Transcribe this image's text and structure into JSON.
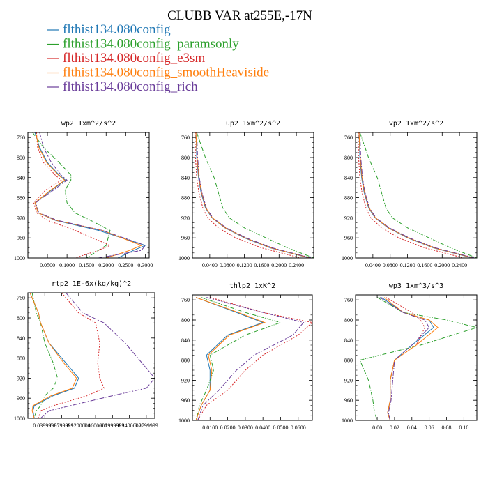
{
  "figure": {
    "title": "CLUBB VAR at255E,-17N"
  },
  "legend": [
    {
      "label": "flthist134.080config",
      "color": "#1f77b4"
    },
    {
      "label": "flthist134.080config_paramsonly",
      "color": "#2ca02c"
    },
    {
      "label": "flthist134.080config_e3sm",
      "color": "#d62728"
    },
    {
      "label": "flthist134.080config_smoothHeaviside",
      "color": "#ff7f0e"
    },
    {
      "label": "flthist134.080config_rich",
      "color": "#6a3d9a"
    }
  ],
  "chart_data": [
    {
      "type": "line",
      "title": "wp2  1xm^2/s^2",
      "xlim": [
        0,
        0.31
      ],
      "ylim": [
        750,
        1000
      ],
      "xticks": [
        0.05,
        0.1,
        0.15,
        0.2,
        0.25,
        0.3
      ],
      "xtick_labels": [
        "0.0500",
        "0.1000",
        "0.1500",
        "0.2000",
        "0.2500",
        "0.3000"
      ],
      "yticks": [
        760,
        800,
        840,
        880,
        920,
        960,
        1000
      ],
      "series": [
        {
          "name": "flthist134.080config",
          "x": [
            0.018,
            0.03,
            0.05,
            0.08,
            0.096,
            0.06,
            0.018,
            0.026,
            0.07,
            0.18,
            0.3,
            0.27,
            0.23
          ],
          "y": [
            750,
            780,
            810,
            835,
            845,
            865,
            890,
            910,
            925,
            945,
            975,
            985,
            1000
          ]
        },
        {
          "name": "flthist134.080config_paramsonly",
          "x": [
            0.012,
            0.04,
            0.08,
            0.11,
            0.11,
            0.095,
            0.1,
            0.12,
            0.16,
            0.21,
            0.2,
            0.18,
            0.15
          ],
          "y": [
            750,
            780,
            810,
            835,
            845,
            865,
            890,
            910,
            925,
            945,
            975,
            985,
            1000
          ]
        },
        {
          "name": "flthist134.080config_e3sm",
          "x": [
            0.022,
            0.025,
            0.04,
            0.07,
            0.085,
            0.045,
            0.015,
            0.022,
            0.05,
            0.12,
            0.21,
            0.18,
            0.12
          ],
          "y": [
            750,
            780,
            810,
            835,
            845,
            865,
            890,
            910,
            925,
            945,
            975,
            985,
            1000
          ]
        },
        {
          "name": "flthist134.080config_smoothHeaviside",
          "x": [
            0.02,
            0.028,
            0.048,
            0.078,
            0.094,
            0.058,
            0.018,
            0.026,
            0.072,
            0.19,
            0.29,
            0.26,
            0.2
          ],
          "y": [
            750,
            780,
            810,
            835,
            845,
            865,
            890,
            910,
            925,
            945,
            975,
            985,
            1000
          ]
        },
        {
          "name": "flthist134.080config_rich",
          "x": [
            0.03,
            0.04,
            0.06,
            0.085,
            0.1,
            0.065,
            0.02,
            0.028,
            0.075,
            0.19,
            0.3,
            0.29,
            0.18
          ],
          "y": [
            750,
            780,
            810,
            835,
            845,
            865,
            890,
            910,
            925,
            945,
            975,
            985,
            1000
          ]
        }
      ]
    },
    {
      "type": "line",
      "title": "up2  1xm^2/s^2",
      "xlim": [
        0,
        0.28
      ],
      "ylim": [
        750,
        1000
      ],
      "xticks": [
        0.04,
        0.08,
        0.12,
        0.16,
        0.2,
        0.24
      ],
      "xtick_labels": [
        "0.0400",
        "0.0800",
        "0.1200",
        "0.1600",
        "0.2000",
        "0.2400"
      ],
      "yticks": [
        760,
        800,
        840,
        880,
        920,
        960,
        1000
      ],
      "series": [
        {
          "name": "flthist134.080config",
          "x": [
            0.008,
            0.01,
            0.014,
            0.02,
            0.03,
            0.045,
            0.075,
            0.12,
            0.18,
            0.27
          ],
          "y": [
            750,
            800,
            840,
            870,
            900,
            920,
            940,
            960,
            980,
            1000
          ]
        },
        {
          "name": "flthist134.080config_paramsonly",
          "x": [
            0.01,
            0.03,
            0.05,
            0.06,
            0.07,
            0.085,
            0.12,
            0.17,
            0.22,
            0.28
          ],
          "y": [
            750,
            800,
            840,
            870,
            900,
            920,
            940,
            960,
            980,
            1000
          ]
        },
        {
          "name": "flthist134.080config_e3sm",
          "x": [
            0.006,
            0.007,
            0.01,
            0.015,
            0.024,
            0.035,
            0.06,
            0.1,
            0.16,
            0.25
          ],
          "y": [
            750,
            800,
            840,
            870,
            900,
            920,
            940,
            960,
            980,
            1000
          ]
        },
        {
          "name": "flthist134.080config_smoothHeaviside",
          "x": [
            0.008,
            0.011,
            0.015,
            0.021,
            0.031,
            0.046,
            0.076,
            0.122,
            0.182,
            0.272
          ],
          "y": [
            750,
            800,
            840,
            870,
            900,
            920,
            940,
            960,
            980,
            1000
          ]
        },
        {
          "name": "flthist134.080config_rich",
          "x": [
            0.01,
            0.012,
            0.016,
            0.022,
            0.032,
            0.047,
            0.078,
            0.124,
            0.185,
            0.275
          ],
          "y": [
            750,
            800,
            840,
            870,
            900,
            920,
            940,
            960,
            980,
            1000
          ]
        }
      ]
    },
    {
      "type": "line",
      "title": "vp2  1xm^2/s^2",
      "xlim": [
        0,
        0.28
      ],
      "ylim": [
        750,
        1000
      ],
      "xticks": [
        0.04,
        0.08,
        0.12,
        0.16,
        0.2,
        0.24
      ],
      "xtick_labels": [
        "0.0400",
        "0.0800",
        "0.1200",
        "0.1600",
        "0.2000",
        "0.2400"
      ],
      "yticks": [
        760,
        800,
        840,
        880,
        920,
        960,
        1000
      ],
      "series": [
        {
          "name": "flthist134.080config",
          "x": [
            0.008,
            0.01,
            0.014,
            0.02,
            0.03,
            0.045,
            0.075,
            0.12,
            0.18,
            0.27
          ],
          "y": [
            750,
            800,
            840,
            870,
            900,
            920,
            940,
            960,
            980,
            1000
          ]
        },
        {
          "name": "flthist134.080config_paramsonly",
          "x": [
            0.01,
            0.03,
            0.05,
            0.06,
            0.07,
            0.085,
            0.12,
            0.17,
            0.22,
            0.28
          ],
          "y": [
            750,
            800,
            840,
            870,
            900,
            920,
            940,
            960,
            980,
            1000
          ]
        },
        {
          "name": "flthist134.080config_e3sm",
          "x": [
            0.006,
            0.007,
            0.01,
            0.015,
            0.024,
            0.035,
            0.06,
            0.1,
            0.16,
            0.25
          ],
          "y": [
            750,
            800,
            840,
            870,
            900,
            920,
            940,
            960,
            980,
            1000
          ]
        },
        {
          "name": "flthist134.080config_smoothHeaviside",
          "x": [
            0.008,
            0.011,
            0.015,
            0.021,
            0.031,
            0.046,
            0.076,
            0.122,
            0.182,
            0.272
          ],
          "y": [
            750,
            800,
            840,
            870,
            900,
            920,
            940,
            960,
            980,
            1000
          ]
        },
        {
          "name": "flthist134.080config_rich",
          "x": [
            0.01,
            0.012,
            0.016,
            0.022,
            0.032,
            0.047,
            0.078,
            0.124,
            0.185,
            0.275
          ],
          "y": [
            750,
            800,
            840,
            870,
            900,
            920,
            940,
            960,
            980,
            1000
          ]
        }
      ]
    },
    {
      "type": "line",
      "title": "rtp2  1E-6x(kg/kg)^2",
      "xlim": [
        0,
        0.3
      ],
      "ylim": [
        750,
        1000
      ],
      "xticks": [
        0.04,
        0.08,
        0.12,
        0.16,
        0.2,
        0.24,
        0.28
      ],
      "xtick_labels": [
        "0.0399999",
        "0.0799999",
        "0.1200000",
        "0.1600000",
        "0.1999999",
        "0.2400000",
        "0.2799999"
      ],
      "yticks": [
        760,
        800,
        840,
        880,
        920,
        960,
        1000
      ],
      "series": [
        {
          "name": "flthist134.080config",
          "x": [
            0.005,
            0.025,
            0.03,
            0.05,
            0.09,
            0.12,
            0.11,
            0.06,
            0.015,
            0.012,
            0.015
          ],
          "y": [
            750,
            790,
            810,
            850,
            890,
            920,
            940,
            955,
            975,
            985,
            1000
          ]
        },
        {
          "name": "flthist134.080config_paramsonly",
          "x": [
            0.01,
            0.02,
            0.03,
            0.04,
            0.06,
            0.07,
            0.06,
            0.04,
            0.03,
            0.02,
            0.015
          ],
          "y": [
            750,
            790,
            810,
            850,
            890,
            920,
            940,
            955,
            975,
            985,
            1000
          ]
        },
        {
          "name": "flthist134.080config_e3sm",
          "x": [
            0.08,
            0.12,
            0.16,
            0.17,
            0.165,
            0.17,
            0.18,
            0.14,
            0.06,
            0.03,
            0.025
          ],
          "y": [
            750,
            790,
            810,
            850,
            890,
            920,
            940,
            955,
            975,
            985,
            1000
          ]
        },
        {
          "name": "flthist134.080config_smoothHeaviside",
          "x": [
            0.005,
            0.025,
            0.03,
            0.05,
            0.085,
            0.115,
            0.105,
            0.055,
            0.012,
            0.01,
            0.015
          ],
          "y": [
            750,
            790,
            810,
            850,
            890,
            920,
            940,
            955,
            975,
            985,
            1000
          ]
        },
        {
          "name": "flthist134.080config_rich",
          "x": [
            0.09,
            0.13,
            0.18,
            0.23,
            0.27,
            0.3,
            0.28,
            0.2,
            0.1,
            0.05,
            0.03
          ],
          "y": [
            750,
            790,
            810,
            850,
            890,
            920,
            940,
            955,
            975,
            985,
            1000
          ]
        }
      ]
    },
    {
      "type": "line",
      "title": "thlp2  1xK^2",
      "xlim": [
        0,
        0.068
      ],
      "ylim": [
        750,
        1000
      ],
      "xticks": [
        0.01,
        0.02,
        0.03,
        0.04,
        0.05,
        0.06
      ],
      "xtick_labels": [
        "0.0100",
        "0.0200",
        "0.0300",
        "0.0400",
        "0.0500",
        "0.0600"
      ],
      "yticks": [
        760,
        800,
        840,
        880,
        920,
        960,
        1000
      ],
      "series": [
        {
          "name": "flthist134.080config",
          "x": [
            0.002,
            0.025,
            0.04,
            0.02,
            0.008,
            0.01,
            0.01,
            0.005,
            0.002
          ],
          "y": [
            755,
            785,
            805,
            830,
            870,
            900,
            940,
            970,
            1000
          ]
        },
        {
          "name": "flthist134.080config_paramsonly",
          "x": [
            0.005,
            0.03,
            0.05,
            0.03,
            0.01,
            0.012,
            0.008,
            0.004,
            0.002
          ],
          "y": [
            755,
            785,
            805,
            830,
            870,
            900,
            940,
            970,
            1000
          ]
        },
        {
          "name": "flthist134.080config_e3sm",
          "x": [
            0.01,
            0.04,
            0.068,
            0.06,
            0.04,
            0.03,
            0.02,
            0.008,
            0.003
          ],
          "y": [
            755,
            785,
            805,
            830,
            870,
            900,
            940,
            970,
            1000
          ]
        },
        {
          "name": "flthist134.080config_smoothHeaviside",
          "x": [
            0.002,
            0.026,
            0.041,
            0.021,
            0.009,
            0.011,
            0.01,
            0.005,
            0.002
          ],
          "y": [
            755,
            785,
            805,
            830,
            870,
            900,
            940,
            970,
            1000
          ]
        },
        {
          "name": "flthist134.080config_rich",
          "x": [
            0.008,
            0.04,
            0.063,
            0.057,
            0.035,
            0.025,
            0.015,
            0.006,
            0.003
          ],
          "y": [
            755,
            785,
            805,
            830,
            870,
            900,
            940,
            970,
            1000
          ]
        }
      ]
    },
    {
      "type": "line",
      "title": "wp3  1xm^3/s^3",
      "xlim": [
        -0.025,
        0.115
      ],
      "ylim": [
        750,
        1000
      ],
      "xticks": [
        0.0,
        0.02,
        0.04,
        0.06,
        0.08,
        0.1
      ],
      "xtick_labels": [
        "0.00",
        "0.02",
        "0.04",
        "0.06",
        "0.08",
        "0.10"
      ],
      "yticks": [
        760,
        800,
        840,
        880,
        920,
        960,
        1000
      ],
      "series": [
        {
          "name": "flthist134.080config",
          "x": [
            0.005,
            0.03,
            0.06,
            0.065,
            0.04,
            0.02,
            0.015,
            0.015,
            0.012,
            0.015
          ],
          "y": [
            755,
            785,
            800,
            815,
            850,
            880,
            920,
            960,
            985,
            1000
          ]
        },
        {
          "name": "flthist134.080config_paramsonly",
          "x": [
            0.0,
            0.03,
            0.08,
            0.115,
            0.05,
            -0.02,
            -0.01,
            -0.005,
            -0.003,
            0.0
          ],
          "y": [
            755,
            785,
            800,
            815,
            850,
            880,
            920,
            960,
            985,
            1000
          ]
        },
        {
          "name": "flthist134.080config_e3sm",
          "x": [
            0.01,
            0.04,
            0.05,
            0.055,
            0.045,
            0.02,
            0.015,
            0.015,
            0.012,
            0.015
          ],
          "y": [
            755,
            785,
            800,
            815,
            850,
            880,
            920,
            960,
            985,
            1000
          ]
        },
        {
          "name": "flthist134.080config_smoothHeaviside",
          "x": [
            0.008,
            0.03,
            0.06,
            0.07,
            0.045,
            0.02,
            0.015,
            0.015,
            0.012,
            0.015
          ],
          "y": [
            755,
            785,
            800,
            815,
            850,
            880,
            920,
            960,
            985,
            1000
          ]
        },
        {
          "name": "flthist134.080config_rich",
          "x": [
            0.003,
            0.03,
            0.055,
            0.06,
            0.04,
            0.02,
            0.018,
            0.016,
            0.013,
            0.015
          ],
          "y": [
            755,
            785,
            800,
            815,
            850,
            880,
            920,
            960,
            985,
            1000
          ]
        }
      ]
    }
  ]
}
